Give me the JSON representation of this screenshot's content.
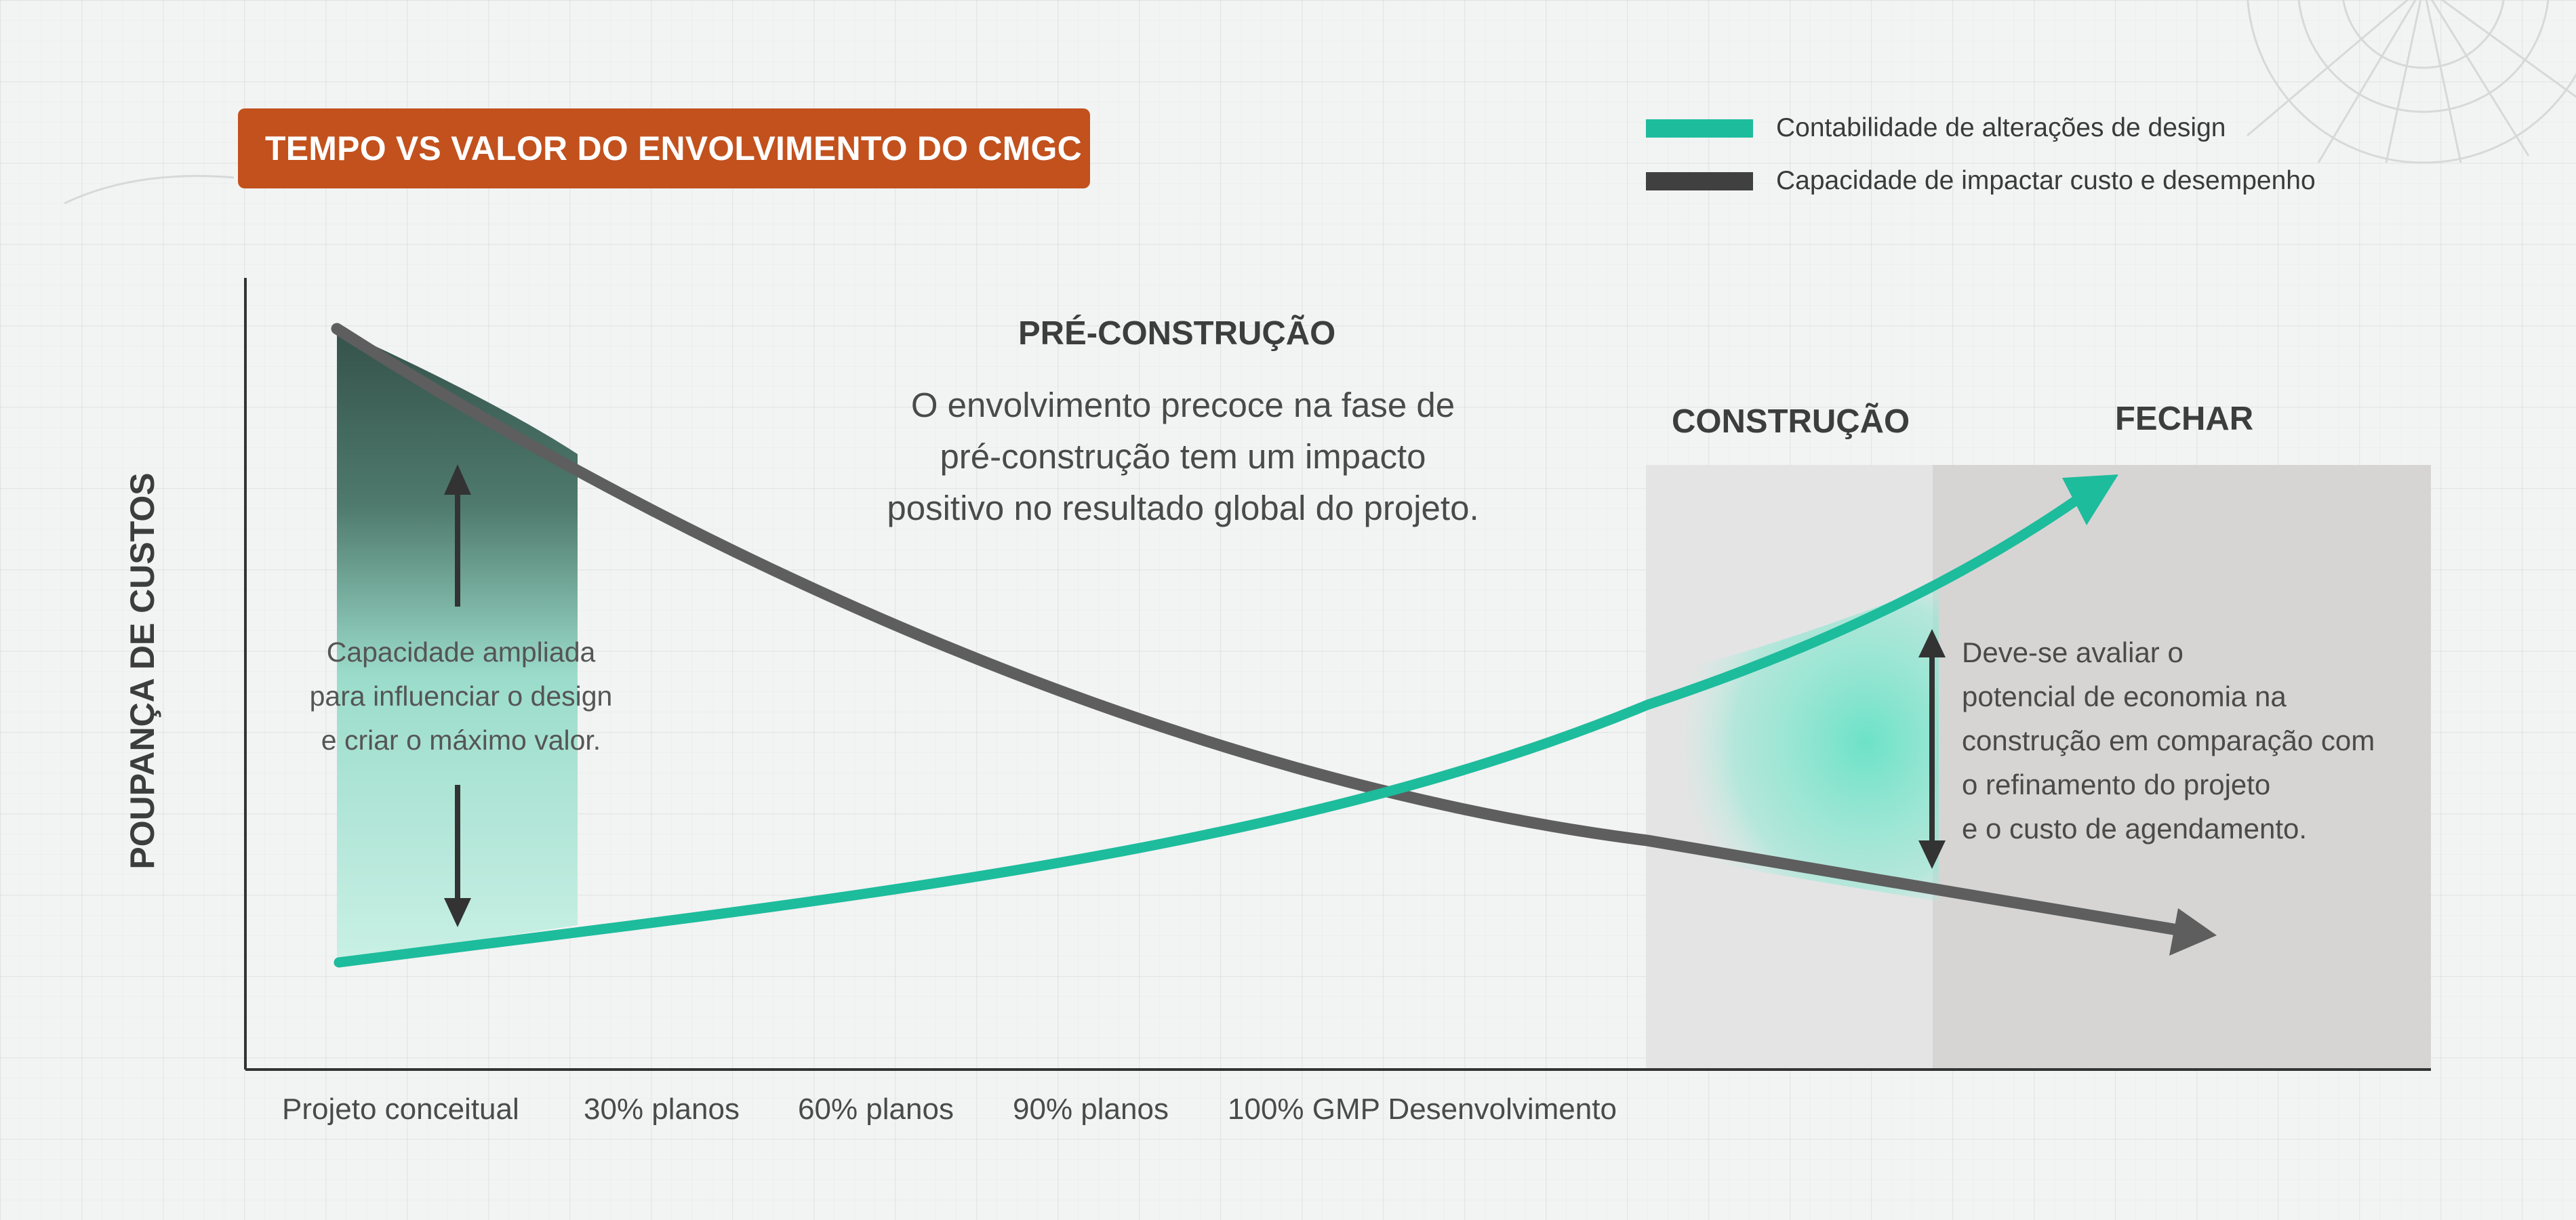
{
  "title": "TEMPO VS VALOR DO ENVOLVIMENTO DO CMGC",
  "legend": [
    {
      "label": "Contabilidade de alterações de design",
      "color": "#1dbc9c"
    },
    {
      "label": "Capacidade de impactar custo e desempenho",
      "color": "#404040"
    }
  ],
  "phases": {
    "pre": "PRÉ-CONSTRUÇÃO",
    "construction": "CONSTRUÇÃO",
    "close": "FECHAR"
  },
  "intro_text": "O envolvimento precoce na fase de\npré-construção tem um impacto\npositivo no resultado global do projeto.",
  "left_note": "Capacidade ampliada\npara influenciar o design\ne criar o máximo valor.",
  "right_note": "Deve-se avaliar o\npotencial de economia na\nconstrução em comparação com\no refinamento do projeto\ne o custo de agendamento.",
  "y_axis_label": "POUPANÇA DE CUSTOS",
  "x_ticks": [
    "Projeto conceitual",
    "30% planos",
    "60% planos",
    "90% planos",
    "100% GMP Desenvolvimento"
  ],
  "colors": {
    "accent": "#c2511d",
    "teal": "#1dbc9c",
    "dark_curve": "#5e5e5e",
    "construction_zone": "#e4e4e4",
    "close_zone": "#d6d5d4"
  }
}
